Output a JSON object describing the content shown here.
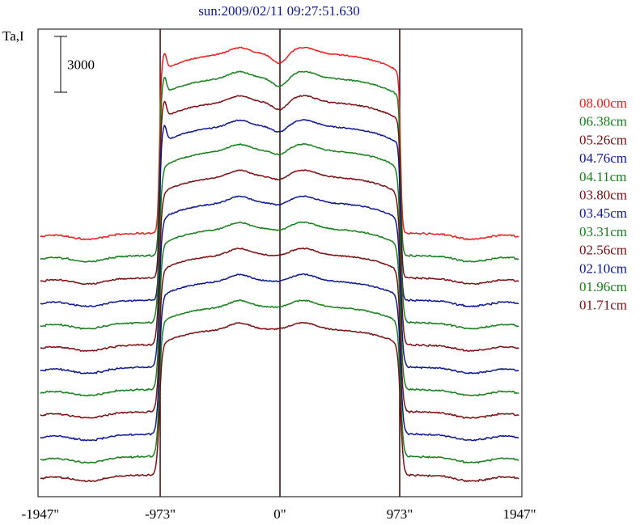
{
  "chart_data": {
    "type": "line",
    "title": "sun:2009/02/11 09:27:51.630",
    "ylabel": "Ta,I",
    "scale_bar_label": "3000",
    "x_ticks": [
      {
        "value": -1947,
        "label": "-1947\""
      },
      {
        "value": -973,
        "label": "-973\""
      },
      {
        "value": 0,
        "label": "0\""
      },
      {
        "value": 973,
        "label": "973\""
      },
      {
        "value": 1947,
        "label": "1947\""
      }
    ],
    "vertical_lines": [
      -973,
      0,
      973
    ],
    "xlim": [
      -1947,
      1947
    ],
    "ylim": [
      0,
      20000
    ],
    "scale_bar_value": 3000,
    "series": [
      {
        "name": "08.00cm",
        "color": "#ee1c1c",
        "offset": 13000,
        "disk": 9800,
        "edge": 1,
        "dip": 550
      },
      {
        "name": "06.38cm",
        "color": "#15801a",
        "offset": 11800,
        "disk": 9700,
        "edge": 1,
        "dip": 500
      },
      {
        "name": "05.26cm",
        "color": "#7a0f0f",
        "offset": 10600,
        "disk": 9600,
        "edge": 1,
        "dip": 450
      },
      {
        "name": "04.76cm",
        "color": "#0d1890",
        "offset": 9400,
        "disk": 9500,
        "edge": 1,
        "dip": 350
      },
      {
        "name": "04.11cm",
        "color": "#15801a",
        "offset": 8200,
        "disk": 9400,
        "edge": 0,
        "dip": 250
      },
      {
        "name": "03.80cm",
        "color": "#7a0f0f",
        "offset": 7000,
        "disk": 9200,
        "edge": 0,
        "dip": 200
      },
      {
        "name": "03.45cm",
        "color": "#0d1890",
        "offset": 5800,
        "disk": 9000,
        "edge": 0,
        "dip": 150
      },
      {
        "name": "03.31cm",
        "color": "#15801a",
        "offset": 4600,
        "disk": 8800,
        "edge": 0,
        "dip": 120
      },
      {
        "name": "02.56cm",
        "color": "#7a0f0f",
        "offset": 3400,
        "disk": 8600,
        "edge": 0,
        "dip": 80
      },
      {
        "name": "02.10cm",
        "color": "#0d1890",
        "offset": 2200,
        "disk": 8400,
        "edge": 0,
        "dip": 60
      },
      {
        "name": "01.96cm",
        "color": "#15801a",
        "offset": 1000,
        "disk": 8200,
        "edge": 0,
        "dip": 40
      },
      {
        "name": "01.71cm",
        "color": "#7a0f0f",
        "offset": 0,
        "disk": 8000,
        "edge": 0,
        "dip": 20
      }
    ]
  }
}
